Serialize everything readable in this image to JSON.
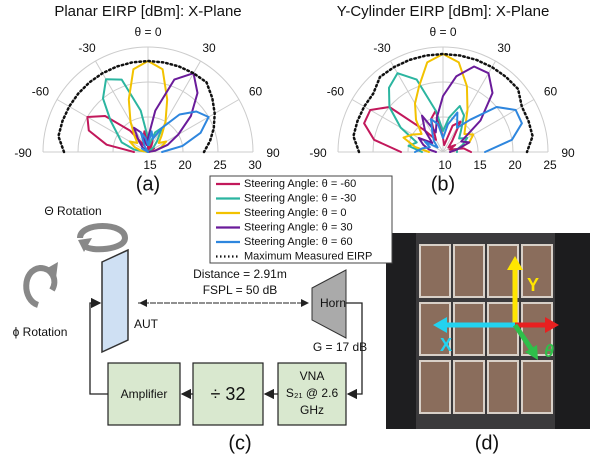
{
  "chart_data": [
    {
      "type": "polar",
      "title": "Planar EIRP [dBm]: X-Plane",
      "caption": "(a)",
      "theta": [
        -90,
        -80,
        -70,
        -60,
        -50,
        -40,
        -30,
        -20,
        -10,
        0,
        10,
        20,
        30,
        40,
        50,
        60,
        70,
        80,
        90
      ],
      "rlim": [
        15,
        30
      ],
      "rticks": [
        15,
        20,
        25,
        30
      ],
      "thetaticks": [
        -90,
        -60,
        -30,
        {
          "value": 0,
          "label": "θ = 0"
        },
        30,
        60,
        90
      ],
      "series": [
        {
          "name": "Steering Angle: θ = -60",
          "color": "#c2185b",
          "style": "solid",
          "values": [
            17,
            21,
            24,
            25,
            23,
            19,
            16,
            17,
            18,
            16,
            15,
            17,
            16,
            15,
            15,
            16,
            15,
            15,
            15
          ]
        },
        {
          "name": "Steering Angle: θ = -30",
          "color": "#2bb5a0",
          "style": "solid",
          "values": [
            15,
            17,
            19,
            20,
            22,
            25,
            27,
            26,
            21,
            17,
            16,
            18,
            19,
            17,
            16,
            15,
            15,
            15,
            15
          ]
        },
        {
          "name": "Steering Angle: θ = 0",
          "color": "#f2c200",
          "style": "solid",
          "values": [
            15,
            16,
            17,
            18,
            17,
            18,
            20,
            23,
            27,
            28,
            27,
            23,
            20,
            18,
            17,
            18,
            17,
            16,
            15
          ]
        },
        {
          "name": "Steering Angle: θ = 30",
          "color": "#6a1b9a",
          "style": "solid",
          "values": [
            15,
            15,
            15,
            15,
            16,
            17,
            19,
            18,
            16,
            17,
            21,
            26,
            28,
            26,
            23,
            20,
            18,
            16,
            15
          ]
        },
        {
          "name": "Steering Angle: θ = 60",
          "color": "#2e86de",
          "style": "solid",
          "values": [
            15,
            15,
            15,
            16,
            15,
            15,
            16,
            18,
            17,
            16,
            18,
            17,
            19,
            22,
            24,
            25,
            23,
            20,
            17
          ]
        },
        {
          "name": "Maximum Measured EIRP",
          "color": "#111111",
          "style": "dotted",
          "values": [
            27,
            28,
            28,
            28,
            28,
            28,
            28,
            28,
            28,
            28,
            28,
            28,
            28,
            28,
            27,
            26,
            25,
            24,
            23
          ]
        }
      ]
    },
    {
      "type": "polar",
      "title": "Y-Cylinder EIRP [dBm]: X-Plane",
      "caption": "(b)",
      "theta": [
        -90,
        -80,
        -70,
        -60,
        -50,
        -40,
        -30,
        -20,
        -10,
        0,
        10,
        20,
        30,
        40,
        50,
        60,
        70,
        80,
        90
      ],
      "rlim": [
        10,
        25
      ],
      "rticks": [
        10,
        15,
        20,
        25
      ],
      "thetaticks": [
        -90,
        -60,
        -30,
        {
          "value": 0,
          "label": "θ = 0"
        },
        30,
        60,
        90
      ],
      "series": [
        {
          "color": "#c2185b",
          "style": "solid",
          "values": [
            16,
            20,
            22,
            22,
            20,
            14,
            12,
            15,
            16,
            12,
            11,
            14,
            15,
            12,
            11,
            12,
            11,
            13,
            14
          ]
        },
        {
          "color": "#2bb5a0",
          "style": "solid",
          "values": [
            13,
            15,
            14,
            17,
            20,
            22,
            23,
            21,
            16,
            13,
            15,
            17,
            16,
            14,
            13,
            14,
            13,
            12,
            12
          ]
        },
        {
          "color": "#f2c200",
          "style": "solid",
          "values": [
            12,
            14,
            16,
            15,
            14,
            16,
            18,
            20,
            23,
            24,
            23,
            20,
            17,
            15,
            14,
            15,
            14,
            12,
            11
          ]
        },
        {
          "color": "#6a1b9a",
          "style": "solid",
          "values": [
            11,
            12,
            13,
            14,
            12,
            14,
            16,
            13,
            15,
            18,
            21,
            23,
            23,
            21,
            17,
            13,
            14,
            12,
            11
          ]
        },
        {
          "color": "#2e86de",
          "style": "solid",
          "values": [
            14,
            13,
            12,
            13,
            11,
            12,
            13,
            15,
            14,
            12,
            14,
            16,
            14,
            16,
            20,
            22,
            22,
            20,
            16
          ]
        },
        {
          "color": "#111111",
          "style": "dotted",
          "values": [
            22,
            23,
            23,
            23,
            23,
            24,
            24,
            24,
            24,
            24,
            24,
            24,
            24,
            24,
            24,
            23,
            23,
            23,
            22
          ]
        }
      ]
    }
  ],
  "diagram": {
    "theta_rotation": "Θ Rotation",
    "phi_rotation": "ϕ Rotation",
    "aut": "AUT",
    "distance": "Distance = 2.91m",
    "fspl": "FSPL = 50 dB",
    "horn": "Horn",
    "gain": "G = 17 dB",
    "amplifier": "Amplifier",
    "divider": "÷ 32",
    "vna": [
      "VNA",
      "S₂₁ @ 2.6",
      "GHz"
    ],
    "caption": "(c)"
  },
  "photo": {
    "labels": [
      "Y",
      "X",
      "θ"
    ],
    "caption": "(d)"
  }
}
